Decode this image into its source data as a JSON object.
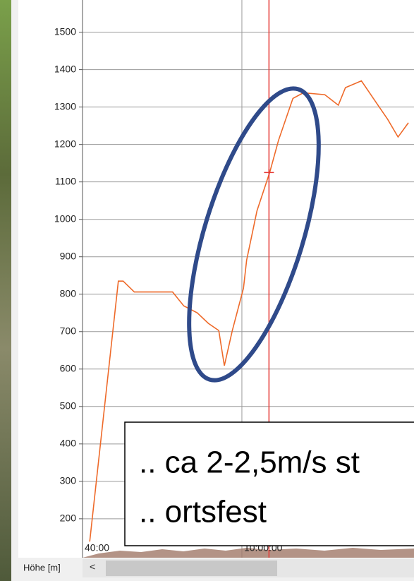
{
  "chart_data": {
    "type": "line",
    "ylabel": "Höhe [m]",
    "x": [
      40.9,
      44.5,
      45.1,
      46.5,
      49.1,
      51.3,
      52.7,
      54.4,
      55.8,
      57.1,
      57.8,
      58.8,
      60.2,
      60.6,
      61.9,
      63.5,
      64.6,
      66.4,
      67.7,
      70.4,
      72.1,
      73.0,
      75.0,
      76.5,
      78.3,
      79.6,
      80.9
    ],
    "series": [
      {
        "color": "#ee6a2a",
        "values": [
          139,
          835,
          835,
          806,
          806,
          806,
          769,
          750,
          722,
          703,
          609,
          703,
          816,
          891,
          1023,
          1126,
          1211,
          1323,
          1338,
          1333,
          1305,
          1352,
          1370,
          1323,
          1267,
          1220,
          1258
        ]
      }
    ],
    "xlim": [
      40,
      81.6
    ],
    "xticks": [
      {
        "value": 40,
        "label": "40:00"
      },
      {
        "value": 60,
        "label": "10:00:00"
      }
    ],
    "ylim": [
      96,
      1586
    ],
    "yticks": [
      200,
      300,
      400,
      500,
      600,
      700,
      800,
      900,
      1000,
      1100,
      1200,
      1300,
      1400,
      1500
    ],
    "grid": true,
    "cursor": {
      "x": 63.4,
      "y": 1125,
      "color": "#e53935"
    },
    "annotations": [
      ".. ca 2-2,5m/s st",
      ".. ortsfest"
    ]
  }
}
